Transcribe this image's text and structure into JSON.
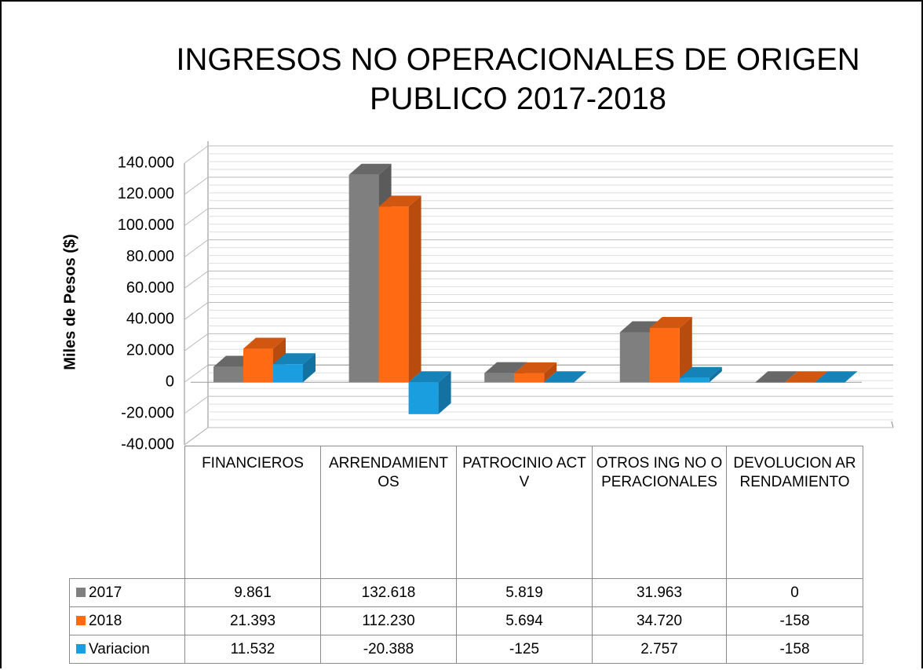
{
  "chart_data": {
    "type": "bar",
    "title": "INGRESOS NO OPERACIONALES DE ORIGEN PUBLICO 2017-2018",
    "y_label": "Miles de Pesos ($)",
    "categories": [
      "FINANCIEROS",
      "ARRENDAMIENTOS",
      "PATROCINIO ACTV",
      "OTROS ING NO OPERACIONALES",
      "DEVOLUCION ARRENDAMIENTO"
    ],
    "series": [
      {
        "name": "2017",
        "color": "#7f7f7f",
        "values": [
          9861,
          132618,
          5819,
          31963,
          0
        ],
        "value_labels": [
          "9.861",
          "132.618",
          "5.819",
          "31.963",
          "0"
        ]
      },
      {
        "name": "2018",
        "color": "#ff6a13",
        "values": [
          21393,
          112230,
          5694,
          34720,
          -158
        ],
        "value_labels": [
          "21.393",
          "112.230",
          "5.694",
          "34.720",
          "-158"
        ]
      },
      {
        "name": "Variacion",
        "color": "#1a9ee0",
        "values": [
          11532,
          -20388,
          -125,
          2757,
          -158
        ],
        "value_labels": [
          "11.532",
          "-20.388",
          "-125",
          "2.757",
          "-158"
        ]
      }
    ],
    "ylim": [
      -40000,
      140000
    ],
    "yticks": [
      {
        "value": -40000,
        "label": "-40.000"
      },
      {
        "value": -20000,
        "label": "-20.000"
      },
      0,
      {
        "value": 20000,
        "label": "20.000"
      },
      {
        "value": 40000,
        "label": "40.000"
      },
      {
        "value": 60000,
        "label": "60.000"
      },
      {
        "value": 80000,
        "label": "80.000"
      },
      {
        "value": 100000,
        "label": "100.000"
      },
      {
        "value": 120000,
        "label": "120.000"
      },
      {
        "value": 140000,
        "label": "140.000"
      }
    ],
    "grid": true
  }
}
